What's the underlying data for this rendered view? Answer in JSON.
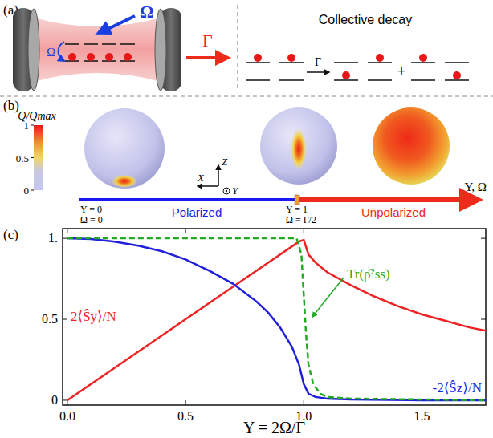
{
  "chart_data": {
    "type": "line",
    "x_label": "Υ = 2Ω/Γ",
    "xlim": [
      -0.02,
      1.77
    ],
    "ylim": [
      -0.03,
      1.06
    ],
    "xticks": [
      {
        "value": 0,
        "label": "0.0"
      },
      {
        "value": 0.5,
        "label": "0.5"
      },
      {
        "value": 1,
        "label": "1.0"
      },
      {
        "value": 1.5,
        "label": "1.5"
      }
    ],
    "yticks": [
      0,
      0.5,
      {
        "value": 1,
        "label": "1."
      }
    ],
    "grid": false,
    "series": [
      {
        "name": "2⟨Ŝy⟩/N",
        "color": "#ee2222",
        "line_style": "solid",
        "x": [
          0,
          0.25,
          0.5,
          0.75,
          0.98,
          1.0,
          1.02,
          1.05,
          1.1,
          1.2,
          1.3,
          1.4,
          1.5,
          1.6,
          1.7,
          1.77
        ],
        "values": [
          0,
          0.25,
          0.5,
          0.75,
          0.98,
          0.99,
          0.9,
          0.85,
          0.79,
          0.71,
          0.64,
          0.58,
          0.53,
          0.49,
          0.45,
          0.43
        ]
      },
      {
        "name": "-2⟨Ŝz⟩/N",
        "color": "#1f1fdd",
        "line_style": "solid",
        "x": [
          0,
          0.1,
          0.2,
          0.3,
          0.4,
          0.5,
          0.6,
          0.7,
          0.8,
          0.85,
          0.9,
          0.95,
          0.98,
          1.0,
          1.02,
          1.05,
          1.1,
          1.2,
          1.5,
          1.77
        ],
        "values": [
          1,
          0.995,
          0.98,
          0.955,
          0.92,
          0.87,
          0.8,
          0.72,
          0.61,
          0.54,
          0.45,
          0.33,
          0.22,
          0.1,
          0.04,
          0.02,
          0.01,
          0.005,
          0,
          0
        ]
      },
      {
        "name": "Tr(ρ̂²ss)",
        "color": "#22aa22",
        "line_style": "dashed",
        "x": [
          0,
          0.97,
          0.99,
          1.0,
          1.01,
          1.02,
          1.04,
          1.07,
          1.1,
          1.2,
          1.77
        ],
        "values": [
          1,
          1,
          0.9,
          0.65,
          0.4,
          0.22,
          0.1,
          0.04,
          0.02,
          0.01,
          0
        ]
      }
    ]
  },
  "diagram": {
    "panel_a": {
      "label": "(a)",
      "drive": "Ω",
      "drive_inner": "Ω",
      "decay": "Γ",
      "title": "Collective decay",
      "decay_small": "Γ",
      "plus": "+"
    },
    "panel_b": {
      "label": "(b)",
      "colorbar_title": "Q/Qmax",
      "colorbar_range": [
        0,
        1
      ],
      "colorbar_ticks": [
        1,
        0.5,
        0
      ],
      "axes": [
        "Z",
        "X",
        "Y"
      ],
      "points": [
        {
          "line1": "Υ = 0",
          "line2": "Ω = 0"
        },
        {
          "line1": "Υ = 1",
          "line2": "Ω = Γ/2"
        }
      ],
      "regions": [
        "Polarized",
        "Unpolarized"
      ],
      "axis_label": "Υ, Ω"
    },
    "panel_c": {
      "label": "(c)"
    }
  }
}
